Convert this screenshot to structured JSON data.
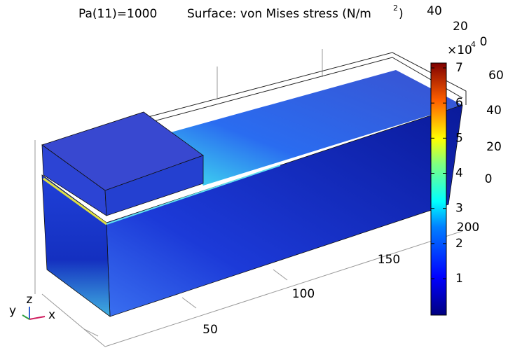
{
  "title": {
    "parameter": "Pa(11)=1000",
    "quantity": "Surface: von Mises stress (N/m",
    "unit_exponent": "2",
    "close": ")"
  },
  "colorbar": {
    "multiplier": "×10",
    "exponent": "4",
    "ticks": [
      "1",
      "2",
      "3",
      "4",
      "5",
      "6",
      "7"
    ]
  },
  "x_axis": {
    "ticks": [
      "50",
      "100",
      "150",
      "200"
    ]
  },
  "y_axis": {
    "ticks": [
      "0",
      "20",
      "40",
      "60"
    ]
  },
  "z_axis": {
    "ticks": [
      "40",
      "20",
      "0"
    ]
  },
  "triad": {
    "x": "x",
    "y": "y",
    "z": "z"
  }
}
